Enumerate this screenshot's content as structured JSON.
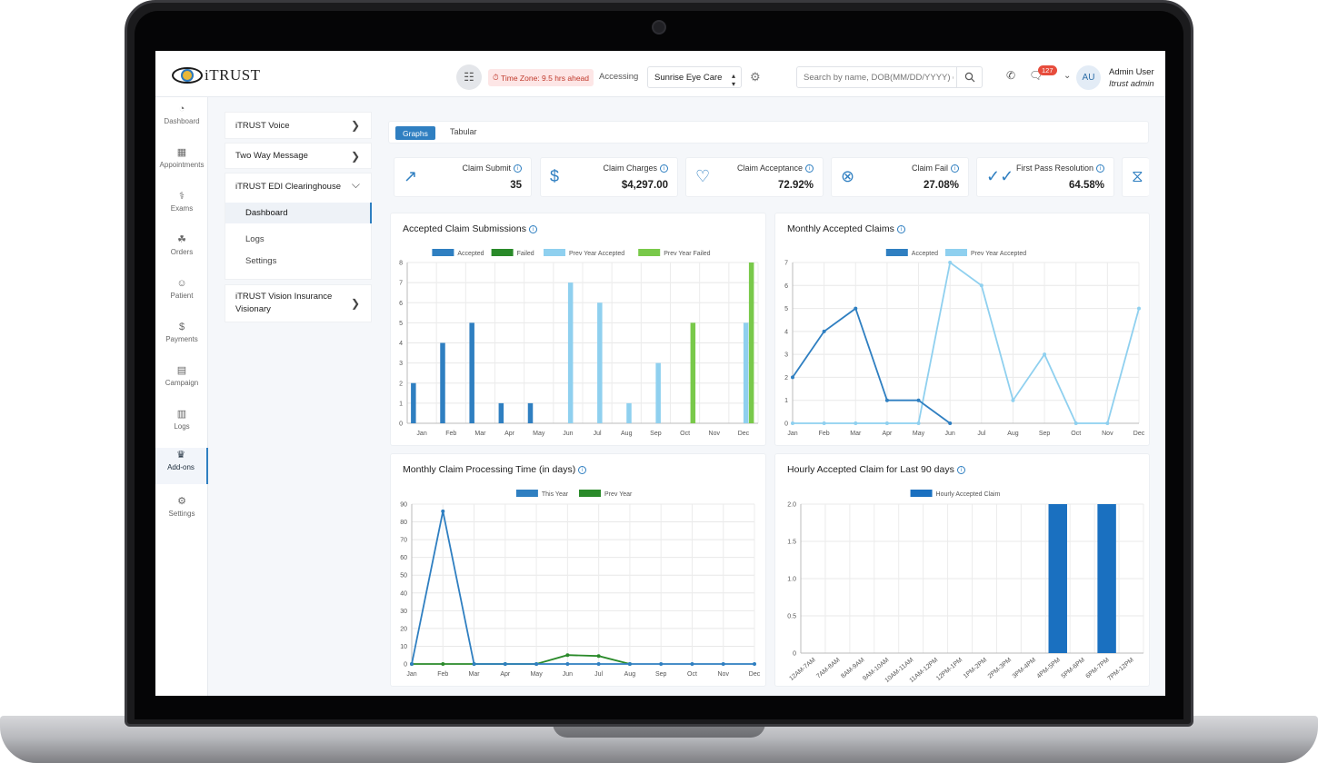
{
  "app": {
    "logo_text": "iTRUST",
    "timezone": "Time Zone: 9.5 hrs ahead",
    "accessing_label": "Accessing",
    "location": "Sunrise Eye Care",
    "search_placeholder": "Search by name, DOB(MM/DD/YYYY) or",
    "chat_badge": "127",
    "avatar_initials": "AU",
    "user_name": "Admin User",
    "user_role": "Itrust admin"
  },
  "nav": [
    {
      "label": "Dashboard",
      "icon": "gauge-icon"
    },
    {
      "label": "Appointments",
      "icon": "calendar-icon"
    },
    {
      "label": "Exams",
      "icon": "stethoscope-icon"
    },
    {
      "label": "Orders",
      "icon": "cart-icon"
    },
    {
      "label": "Patient",
      "icon": "patient-icon"
    },
    {
      "label": "Payments",
      "icon": "dollar-icon"
    },
    {
      "label": "Campaign",
      "icon": "message-icon"
    },
    {
      "label": "Logs",
      "icon": "document-icon"
    },
    {
      "label": "Add-ons",
      "icon": "crown-icon",
      "active": true
    },
    {
      "label": "Settings",
      "icon": "gear-icon"
    }
  ],
  "submenu": {
    "voice": "iTRUST Voice",
    "two_way": "Two Way Message",
    "edi": "iTRUST EDI Clearinghouse",
    "edi_dashboard": "Dashboard",
    "edi_logs": "Logs",
    "edi_settings": "Settings",
    "vision_line1": "iTRUST Vision Insurance",
    "vision_line2": "Visionary"
  },
  "tabs": {
    "graphs": "Graphs",
    "tabular": "Tabular"
  },
  "cards": [
    {
      "label": "Claim Submit",
      "value": "35"
    },
    {
      "label": "Claim Charges",
      "value": "$4,297.00"
    },
    {
      "label": "Claim Acceptance",
      "value": "72.92%"
    },
    {
      "label": "Claim Fail",
      "value": "27.08%"
    },
    {
      "label": "First Pass Resolution",
      "value": "64.58%"
    }
  ],
  "colors": {
    "accent": "#2f7fc1",
    "accepted": "#2f7fc1",
    "failed": "#2a8a2a",
    "prev_accepted": "#8fd0ef",
    "prev_failed": "#79c94a",
    "hourly": "#1a70c0"
  },
  "chart_data": [
    {
      "type": "bar",
      "title": "Accepted Claim Submissions",
      "categories": [
        "Jan",
        "Feb",
        "Mar",
        "Apr",
        "May",
        "Jun",
        "Jul",
        "Aug",
        "Sep",
        "Oct",
        "Nov",
        "Dec"
      ],
      "series": [
        {
          "name": "Accepted",
          "values": [
            2,
            4,
            5,
            1,
            1,
            0,
            0,
            0,
            0,
            0,
            0,
            0
          ]
        },
        {
          "name": "Failed",
          "values": [
            0,
            0,
            0,
            0,
            0,
            0,
            0,
            0,
            0,
            0,
            0,
            0
          ]
        },
        {
          "name": "Prev Year Accepted",
          "values": [
            0,
            0,
            0,
            0,
            0,
            7,
            6,
            1,
            3,
            0,
            0,
            5
          ]
        },
        {
          "name": "Prev Year Failed",
          "values": [
            0,
            0,
            0,
            0,
            0,
            0,
            0,
            0,
            0,
            5,
            0,
            8
          ]
        }
      ],
      "yticks": [
        "0",
        "1",
        "2",
        "3",
        "4",
        "5",
        "6",
        "7",
        "8"
      ],
      "ylim": [
        0,
        8
      ],
      "legend": "top"
    },
    {
      "type": "line",
      "title": "Monthly Accepted Claims",
      "categories": [
        "Jan",
        "Feb",
        "Mar",
        "Apr",
        "May",
        "Jun",
        "Jul",
        "Aug",
        "Sep",
        "Oct",
        "Nov",
        "Dec"
      ],
      "series": [
        {
          "name": "Accepted",
          "values": [
            2,
            4,
            5,
            1,
            1,
            0,
            null,
            null,
            null,
            null,
            null,
            null
          ]
        },
        {
          "name": "Prev Year Accepted",
          "values": [
            0,
            0,
            0,
            0,
            0,
            7,
            6,
            1,
            3,
            0,
            0,
            5
          ]
        }
      ],
      "yticks": [
        "0",
        "1",
        "2",
        "3",
        "4",
        "5",
        "6",
        "7"
      ],
      "ylim": [
        0,
        7
      ],
      "legend": "top"
    },
    {
      "type": "line",
      "title": "Monthly Claim Processing Time (in days)",
      "categories": [
        "Jan",
        "Feb",
        "Mar",
        "Apr",
        "May",
        "Jun",
        "Jul",
        "Aug",
        "Sep",
        "Oct",
        "Nov",
        "Dec"
      ],
      "series": [
        {
          "name": "This Year",
          "values": [
            0,
            86,
            0,
            0,
            0,
            0,
            0,
            0,
            0,
            0,
            0,
            0
          ]
        },
        {
          "name": "Prev Year",
          "values": [
            0,
            0,
            0,
            0,
            0,
            5,
            4.5,
            0,
            null,
            null,
            null,
            null
          ]
        }
      ],
      "yticks": [
        "0",
        "10",
        "20",
        "30",
        "40",
        "50",
        "60",
        "70",
        "80",
        "90"
      ],
      "ylim": [
        0,
        90
      ],
      "legend": "top"
    },
    {
      "type": "bar",
      "title": "Hourly Accepted Claim for Last 90 days",
      "categories": [
        "12AM-7AM",
        "7AM-8AM",
        "8AM-9AM",
        "9AM-10AM",
        "10AM-11AM",
        "11AM-12PM",
        "12PM-1PM",
        "1PM-2PM",
        "2PM-3PM",
        "3PM-4PM",
        "4PM-5PM",
        "5PM-6PM",
        "6PM-7PM",
        "7PM-12PM"
      ],
      "series": [
        {
          "name": "Hourly Accepted Claim",
          "values": [
            0,
            0,
            0,
            0,
            0,
            0,
            0,
            0,
            0,
            0,
            2,
            0,
            2,
            0
          ]
        }
      ],
      "yticks": [
        "0",
        "0.5",
        "1.0",
        "1.5",
        "2.0"
      ],
      "ylim": [
        0,
        2
      ],
      "legend": "top"
    }
  ]
}
